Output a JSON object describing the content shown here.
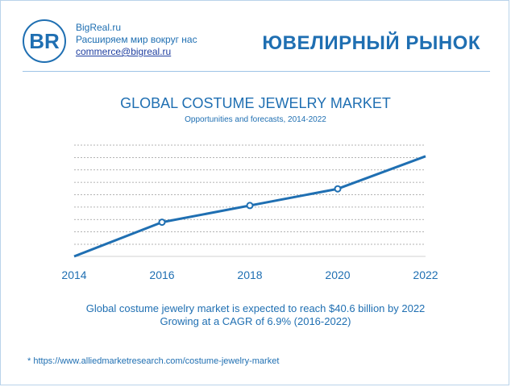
{
  "header": {
    "logo_text": "BR",
    "site": "BigReal.ru",
    "tagline": "Расширяем мир вокруг нас",
    "email": "commerce@bigreal.ru",
    "page_title": "ЮВЕЛИРНЫЙ РЫНОК"
  },
  "summary": {
    "line1": "Global costume jewelry market is expected to reach $40.6 billion by 2022",
    "line2": "Growing at a CAGR of 6.9% (2016-2022)"
  },
  "footnote": "* https://www.alliedmarketresearch.com/costume-jewelry-market",
  "colors": {
    "accent": "#1f6fb2",
    "grid": "#9a9a9a"
  },
  "chart_data": {
    "type": "line",
    "title": "GLOBAL COSTUME JEWELRY MARKET",
    "subtitle": "Opportunities  and forecasts, 2014-2022",
    "x": [
      2014,
      2016,
      2018,
      2020,
      2022
    ],
    "tick_labels": [
      "2014",
      "2016",
      "2018",
      "2020",
      "2022"
    ],
    "y": [
      0,
      4.3,
      6.4,
      8.5,
      12.6
    ],
    "markers": [
      false,
      true,
      true,
      true,
      false
    ],
    "ylim": [
      0,
      14
    ],
    "grid": true
  }
}
